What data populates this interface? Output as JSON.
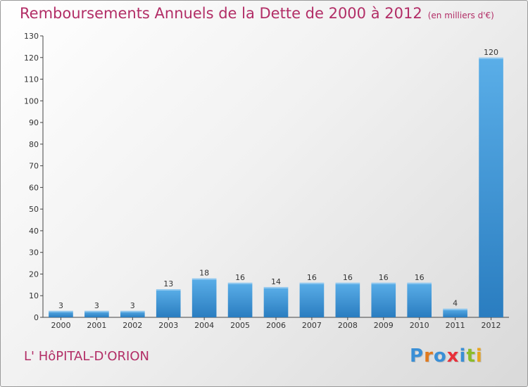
{
  "title": "Remboursements Annuels de la Dette de 2000 à 2012",
  "subtitle": "(en milliers d'€)",
  "commune": "L' HôPITAL-D'ORION",
  "brand": {
    "letters": [
      "P",
      "r",
      "o",
      "x",
      "i",
      "t",
      "i"
    ],
    "colors": [
      "#3a8fd6",
      "#e07a1f",
      "#3a8fd6",
      "#e8303a",
      "#3a8fd6",
      "#8cbc2a",
      "#e8a41f"
    ]
  },
  "colors": {
    "title": "#b22d66",
    "bar_top": "#5aaee8",
    "bar_bottom": "#2a7dc0"
  },
  "chart_data": {
    "type": "bar",
    "categories": [
      "2000",
      "2001",
      "2002",
      "2003",
      "2004",
      "2005",
      "2006",
      "2007",
      "2008",
      "2009",
      "2010",
      "2011",
      "2012"
    ],
    "values": [
      3,
      3,
      3,
      13,
      18,
      16,
      14,
      16,
      16,
      16,
      16,
      4,
      120
    ],
    "ylim": [
      0,
      130
    ],
    "yticks": [
      0,
      10,
      20,
      30,
      40,
      50,
      60,
      70,
      80,
      90,
      100,
      110,
      120,
      130
    ],
    "grid": false,
    "data_labels": true
  }
}
